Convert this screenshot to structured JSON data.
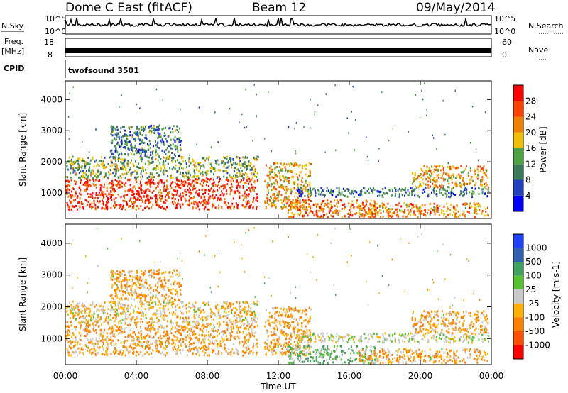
{
  "header": {
    "radar": "Dome C East (fitACF)",
    "beam": "Beam 12",
    "date": "09/May/2014"
  },
  "top_panels": {
    "nsky_label": "N.Sky",
    "nsky_ticks": [
      "10^5",
      "10^0"
    ],
    "nsearch_label": "N.Search",
    "nsearch_ticks": [
      "10^5",
      "10^0"
    ],
    "freq_label": "Freq.",
    "freq_unit": "[MHz]",
    "freq_ticks": [
      "18",
      "8"
    ],
    "nave_label": "Nave",
    "nave_ticks": [
      "60",
      "0"
    ],
    "cpid_label": "CPID",
    "cpid_value": "twofsound 3501"
  },
  "colors": {
    "power_scale": [
      "#0000ff",
      "#2040c0",
      "#3a7a5a",
      "#4ea040",
      "#f0c000",
      "#f08000",
      "#ff4000",
      "#ff0000"
    ],
    "velocity_scale": [
      "#ff0000",
      "#ff5000",
      "#ff8000",
      "#ffb000",
      "#c8c8c8",
      "#55c030",
      "#40a060",
      "#3060b0",
      "#2040ff"
    ],
    "ground_scatter": "#c0c0c0"
  },
  "chart_data": [
    {
      "type": "heatmap",
      "title": "Power",
      "xlabel": "Time UT",
      "ylabel": "Slant Range [km]",
      "x_ticks": [
        "00:00",
        "04:00",
        "08:00",
        "12:00",
        "16:00",
        "20:00",
        "00:00"
      ],
      "y_ticks": [
        "1000",
        "2000",
        "3000",
        "4000"
      ],
      "xlim": [
        0,
        24
      ],
      "ylim": [
        180,
        4600
      ],
      "colorbar_label": "Power [dB]",
      "colorbar_ticks": [
        "4",
        "8",
        "12",
        "16",
        "20",
        "24",
        "28"
      ],
      "colorbar_range": [
        0,
        32
      ],
      "regions": [
        {
          "t0": 0.0,
          "t1": 10.8,
          "r0": 500,
          "r1": 1500,
          "value": 28
        },
        {
          "t0": 0.0,
          "t1": 10.8,
          "r0": 1500,
          "r1": 2200,
          "value": 14
        },
        {
          "t0": 2.5,
          "t1": 6.5,
          "r0": 2200,
          "r1": 3200,
          "value": 10
        },
        {
          "t0": 11.2,
          "t1": 13.8,
          "r0": 500,
          "r1": 2000,
          "value": 20
        },
        {
          "t0": 12.5,
          "t1": 17.5,
          "r0": 250,
          "r1": 800,
          "value": 24
        },
        {
          "t0": 13.0,
          "t1": 23.8,
          "r0": 900,
          "r1": 1200,
          "value": 9
        },
        {
          "t0": 16.5,
          "t1": 23.8,
          "r0": 250,
          "r1": 700,
          "value": 22
        },
        {
          "t0": 19.5,
          "t1": 23.8,
          "r0": 1200,
          "r1": 1900,
          "value": 20
        }
      ]
    },
    {
      "type": "heatmap",
      "title": "Velocity",
      "xlabel": "Time UT",
      "ylabel": "Slant Range [km]",
      "x_ticks": [
        "00:00",
        "04:00",
        "08:00",
        "12:00",
        "16:00",
        "20:00",
        "00:00"
      ],
      "y_ticks": [
        "1000",
        "2000",
        "3000",
        "4000"
      ],
      "xlim": [
        0,
        24
      ],
      "ylim": [
        180,
        4600
      ],
      "colorbar_label": "Velocity [m s-1]",
      "colorbar_ticks": [
        "1000",
        "500",
        "100",
        "25",
        "-25",
        "-100",
        "-500",
        "-1000"
      ],
      "regions": [
        {
          "t0": 0.0,
          "t1": 10.8,
          "r0": 500,
          "r1": 1500,
          "value": -100
        },
        {
          "t0": 0.0,
          "t1": 10.8,
          "r0": 1500,
          "r1": 2200,
          "value": -50
        },
        {
          "t0": 2.5,
          "t1": 6.5,
          "r0": 2200,
          "r1": 3200,
          "value": -100
        },
        {
          "t0": 11.2,
          "t1": 13.8,
          "r0": 500,
          "r1": 2000,
          "value": -100
        },
        {
          "t0": 12.5,
          "t1": 17.5,
          "r0": 250,
          "r1": 800,
          "value": 100
        },
        {
          "t0": 13.0,
          "t1": 23.8,
          "r0": 900,
          "r1": 1200,
          "value": 0
        },
        {
          "t0": 16.5,
          "t1": 23.8,
          "r0": 250,
          "r1": 700,
          "value": -100
        },
        {
          "t0": 19.5,
          "t1": 23.8,
          "r0": 1200,
          "r1": 1900,
          "value": -100
        }
      ]
    }
  ]
}
